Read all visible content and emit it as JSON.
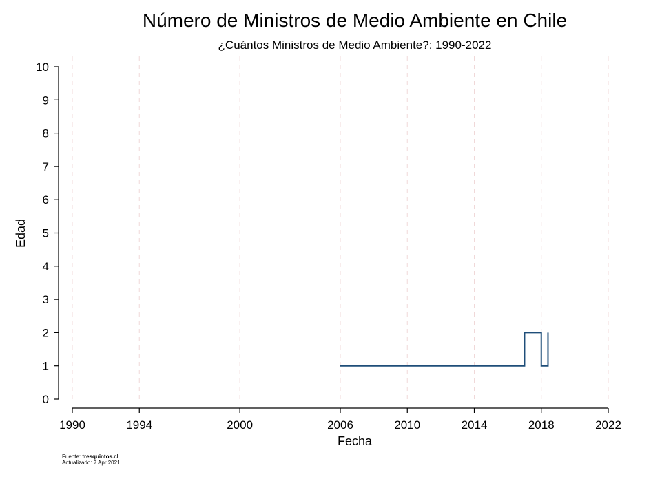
{
  "chart_data": {
    "type": "line",
    "line_style": "step",
    "title": "Número de Ministros de Medio Ambiente en Chile",
    "subtitle": "¿Cuántos Ministros de Medio Ambiente?: 1990-2022",
    "xlabel": "Fecha",
    "ylabel": "Edad",
    "x_ticks": [
      "1990",
      "1994",
      "2000",
      "2006",
      "2010",
      "2014",
      "2018",
      "2022"
    ],
    "y_ticks": [
      "0",
      "1",
      "2",
      "3",
      "4",
      "5",
      "6",
      "7",
      "8",
      "9",
      "10"
    ],
    "xlim": [
      1990,
      2022
    ],
    "ylim": [
      0,
      10
    ],
    "grid": "vertical dashed",
    "series": [
      {
        "color": "#1f4e79",
        "x": [
          2006.0,
          2017.0,
          2017.0,
          2018.0,
          2018.0,
          2018.4,
          2018.4
        ],
        "y": [
          1,
          1,
          2,
          2,
          1,
          1,
          2
        ]
      }
    ]
  },
  "footer": {
    "source_label": "Fuente:",
    "source_value": "tresquintos.cl",
    "updated_label": "Actualizado:",
    "updated_value": "7 Apr 2021"
  }
}
